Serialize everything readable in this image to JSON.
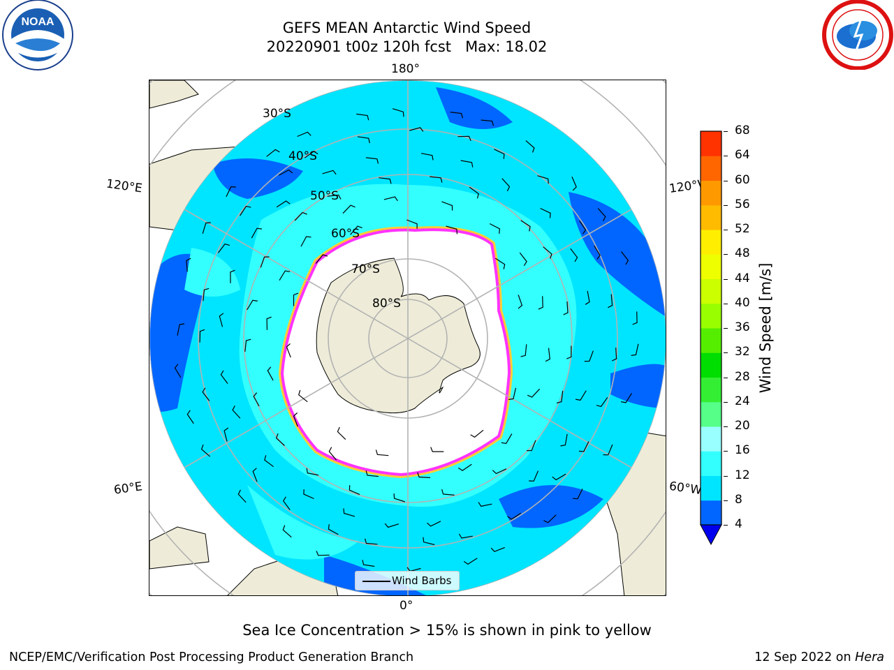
{
  "header": {
    "title_line1": "GEFS MEAN Antarctic Wind Speed",
    "title_line2": "20220901 t00z 120h fcst   Max: 18.02"
  },
  "logos": {
    "left_logo_text": "NOAA",
    "left_logo_ring": "NATIONAL OCEANIC AND ATMOSPHERIC ADMINISTRATION · U.S. DEPARTMENT OF COMMERCE",
    "right_logo_ring": "NATIONAL WEATHER SERVICE"
  },
  "map": {
    "projection": "south-polar-stereographic",
    "longitude_labels": [
      "180°",
      "120°E",
      "120°W",
      "60°E",
      "60°W",
      "0°"
    ],
    "latitude_labels": [
      "30°S",
      "40°S",
      "50°S",
      "60°S",
      "70°S",
      "80°S"
    ],
    "legend_label": "Wind Barbs",
    "colors": {
      "land": "#eeecd8",
      "sea_ice": "#ffffff",
      "wind_4_8": "#0066ff",
      "wind_8_12": "#00e5ff",
      "wind_12_16": "#33ffff",
      "ice_edge_pink": "#ff33ff",
      "ice_edge_yellow": "#ffcc33",
      "graticule": "#b3b3b3"
    }
  },
  "colorbar": {
    "label": "Wind Speed [m/s]",
    "ticks": [
      "4",
      "8",
      "12",
      "16",
      "20",
      "24",
      "28",
      "32",
      "36",
      "40",
      "44",
      "48",
      "52",
      "56",
      "60",
      "64",
      "68"
    ],
    "colors": [
      "#0066ff",
      "#00e5ff",
      "#33ffff",
      "#99ffff",
      "#55ff88",
      "#33ee33",
      "#00dd00",
      "#55ee00",
      "#99ff00",
      "#ccff00",
      "#eeff00",
      "#ffee00",
      "#ffbb00",
      "#ff9900",
      "#ff6600",
      "#ff3300",
      "#ff0000"
    ],
    "extend_color": "#0000ee"
  },
  "note": "Sea Ice Concentration > 15% is shown in pink to yellow",
  "footer": {
    "left": "NCEP/EMC/Verification Post Processing Product Generation Branch",
    "right_date": "12 Sep 2022 on ",
    "right_machine": "Hera"
  }
}
